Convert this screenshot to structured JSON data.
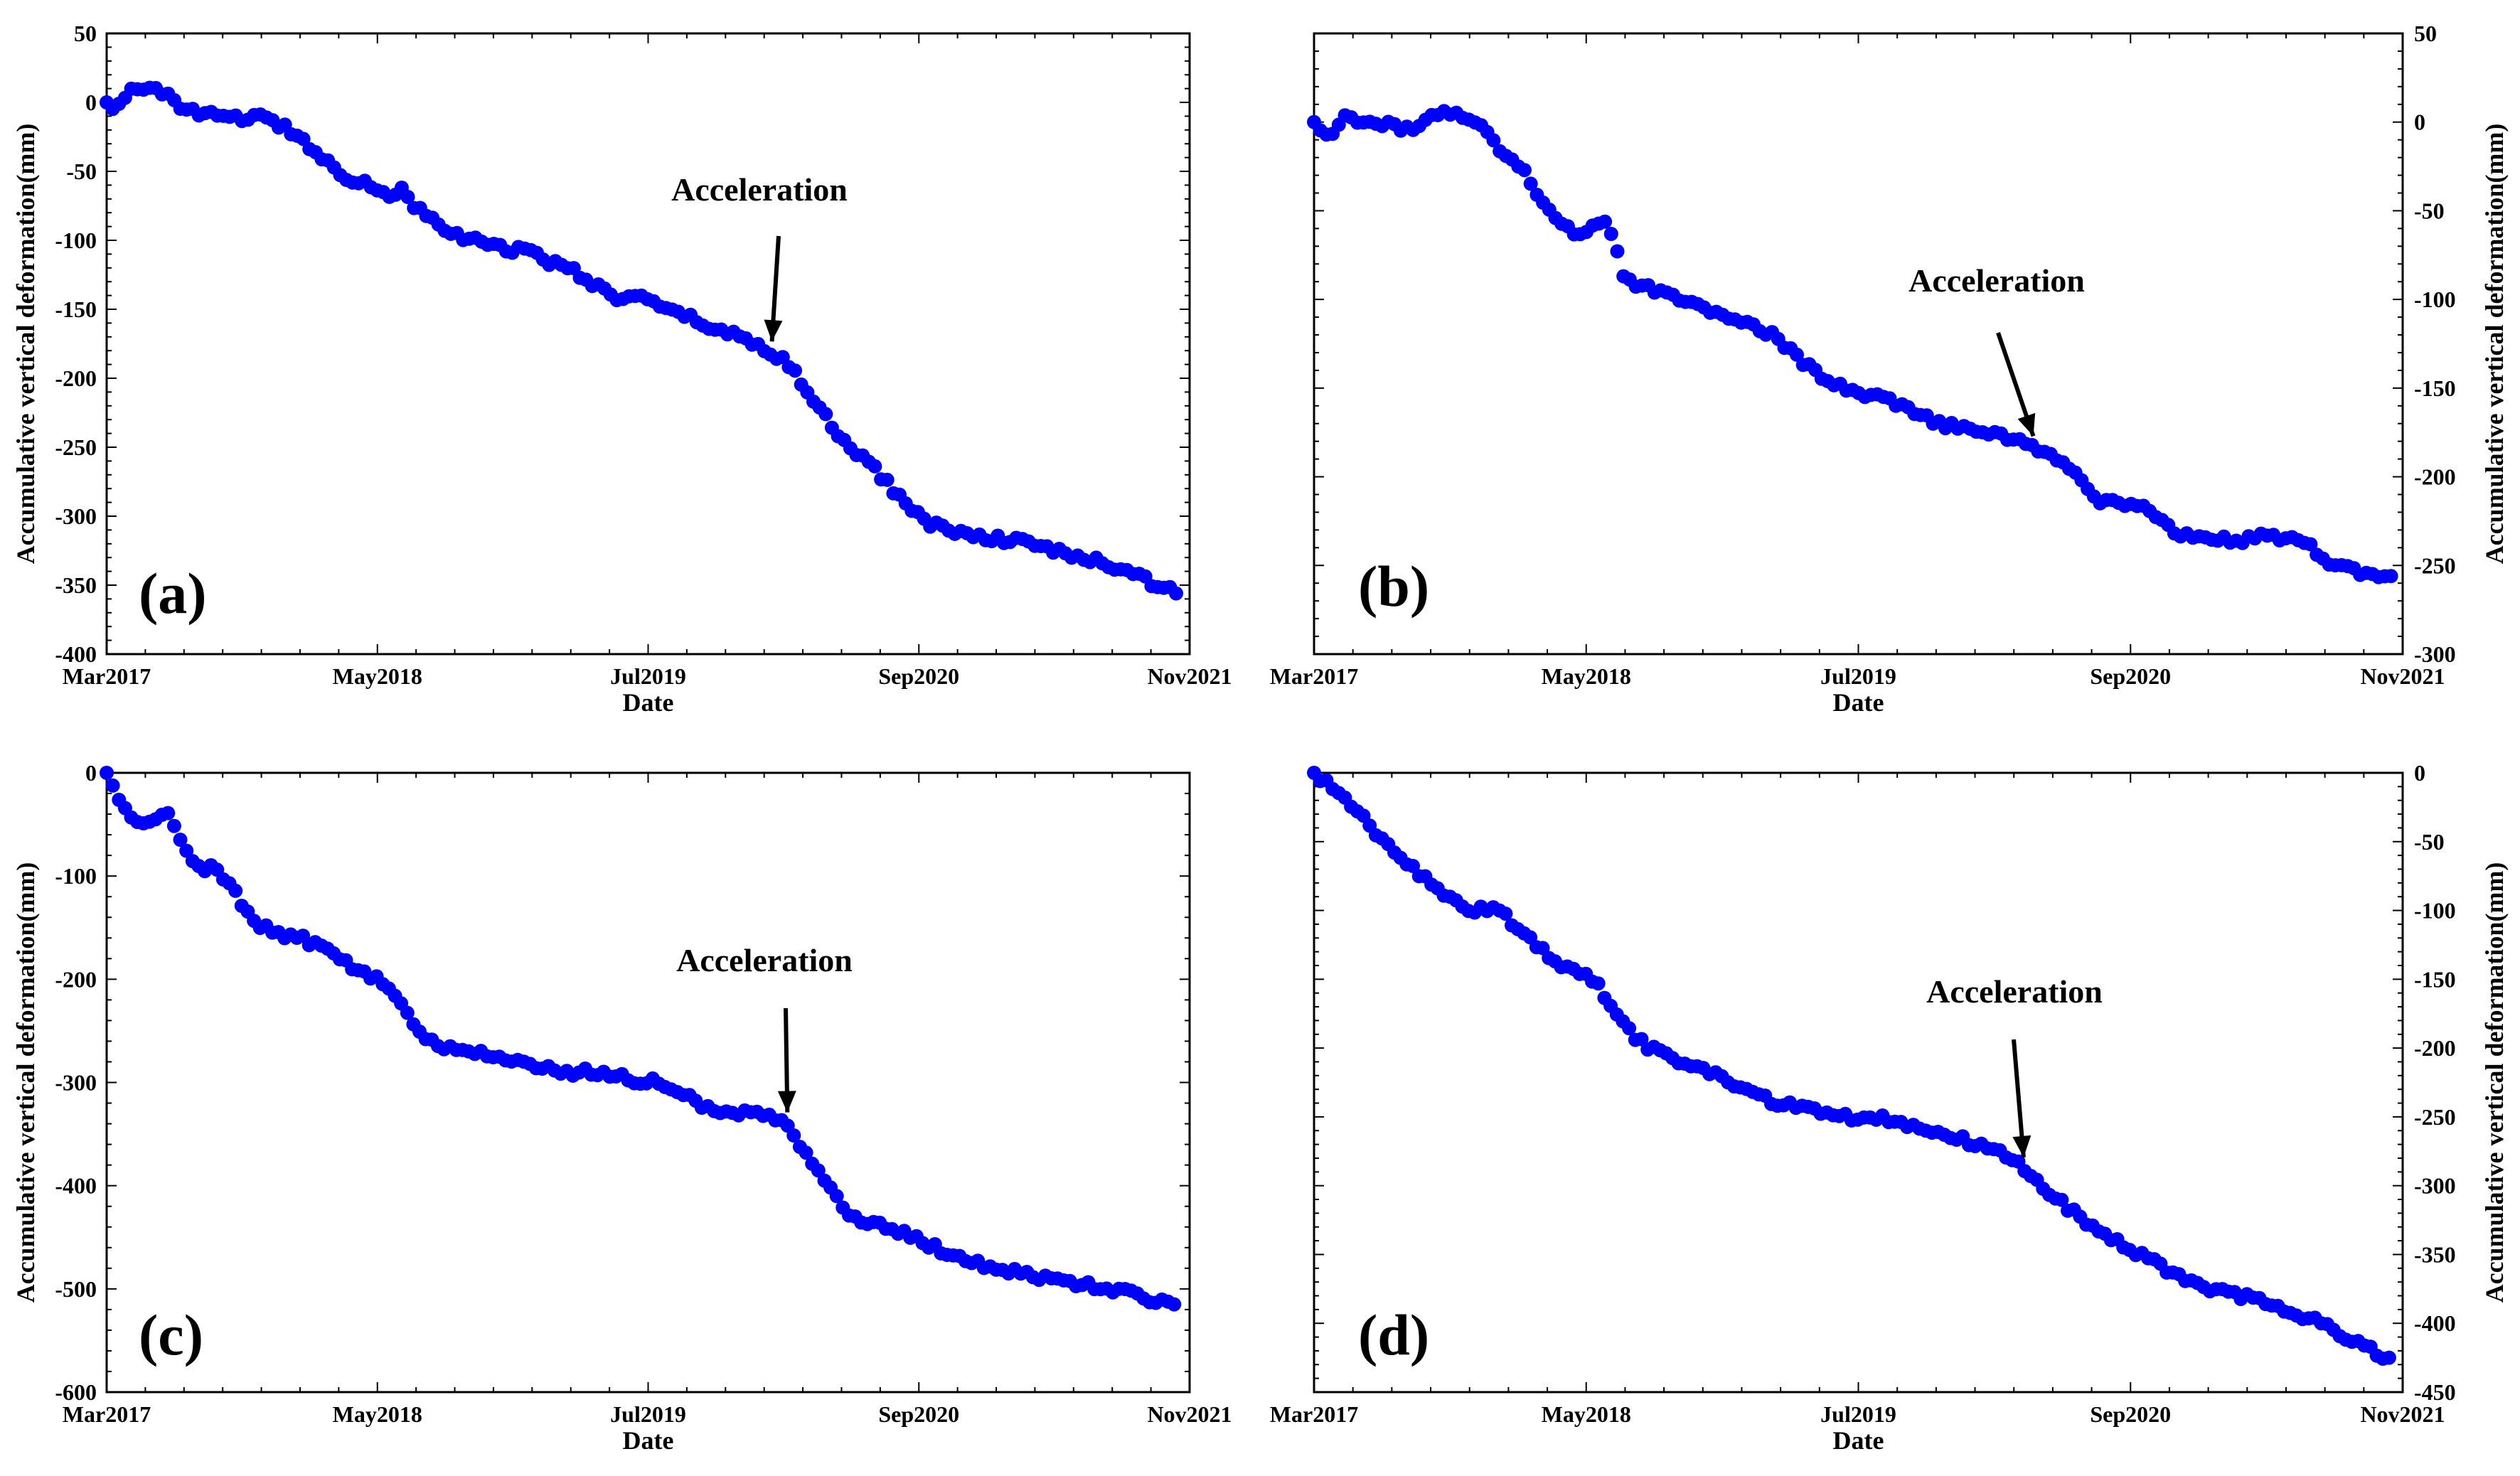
{
  "figure": {
    "colors": {
      "marker": "#0000ff",
      "axis": "#000000",
      "background": "#ffffff"
    }
  },
  "chart_data": [
    {
      "type": "scatter",
      "panel_label": "(a)",
      "xlabel": "Date",
      "ylabel": "Accumulative vertical deformation(mm)",
      "ylabel_side": "left",
      "x_ticks": [
        "Mar2017",
        "May2018",
        "Jul2019",
        "Sep2020",
        "Nov2021"
      ],
      "x_range_months": [
        0,
        56
      ],
      "ylim": [
        -400,
        50
      ],
      "y_ticks": [
        50,
        0,
        -50,
        -100,
        -150,
        -200,
        -250,
        -300,
        -350,
        -400
      ],
      "annotation": {
        "text": "Acceleration",
        "target_month": 34.4
      },
      "keypoints": [
        [
          0,
          0
        ],
        [
          0.4,
          -4
        ],
        [
          1.2,
          8
        ],
        [
          2.5,
          8
        ],
        [
          3.2,
          9
        ],
        [
          3.8,
          -4
        ],
        [
          5.0,
          -10
        ],
        [
          6.0,
          -8
        ],
        [
          6.7,
          -12
        ],
        [
          7.8,
          -10
        ],
        [
          8.5,
          -14
        ],
        [
          9.3,
          -18
        ],
        [
          10.5,
          -32
        ],
        [
          11.6,
          -45
        ],
        [
          12.5,
          -55
        ],
        [
          13.4,
          -58
        ],
        [
          14.6,
          -68
        ],
        [
          15.4,
          -62
        ],
        [
          15.9,
          -75
        ],
        [
          17.2,
          -90
        ],
        [
          18.6,
          -100
        ],
        [
          19.6,
          -100
        ],
        [
          20.8,
          -108
        ],
        [
          21.9,
          -105
        ],
        [
          22.8,
          -115
        ],
        [
          24.2,
          -122
        ],
        [
          25.0,
          -130
        ],
        [
          26.2,
          -142
        ],
        [
          27.5,
          -140
        ],
        [
          28.7,
          -150
        ],
        [
          30.0,
          -155
        ],
        [
          31.5,
          -165
        ],
        [
          32.8,
          -170
        ],
        [
          34.0,
          -178
        ],
        [
          35.0,
          -187
        ],
        [
          35.8,
          -200
        ],
        [
          36.5,
          -215
        ],
        [
          37.5,
          -235
        ],
        [
          38.4,
          -250
        ],
        [
          39.5,
          -262
        ],
        [
          40.9,
          -285
        ],
        [
          42.5,
          -305
        ],
        [
          44.0,
          -312
        ],
        [
          45.5,
          -315
        ],
        [
          47.0,
          -318
        ],
        [
          48.5,
          -322
        ],
        [
          50.0,
          -330
        ],
        [
          51.3,
          -333
        ],
        [
          52.5,
          -338
        ],
        [
          54.0,
          -348
        ],
        [
          55.3,
          -356
        ]
      ]
    },
    {
      "type": "scatter",
      "panel_label": "(b)",
      "xlabel": "Date",
      "ylabel": "Accumulative vertical deformation(mm)",
      "ylabel_side": "right",
      "x_ticks": [
        "Mar2017",
        "May2018",
        "Jul2019",
        "Sep2020",
        "Nov2021"
      ],
      "x_range_months": [
        0,
        56
      ],
      "ylim": [
        -300,
        50
      ],
      "y_ticks": [
        50,
        0,
        -50,
        -100,
        -150,
        -200,
        -250,
        -300
      ],
      "annotation": {
        "text": "Acceleration",
        "target_month": 37.0
      },
      "keypoints": [
        [
          0,
          0
        ],
        [
          0.7,
          -8
        ],
        [
          1.5,
          2
        ],
        [
          3.0,
          -1
        ],
        [
          4.0,
          -2
        ],
        [
          5.0,
          -5
        ],
        [
          6.0,
          4
        ],
        [
          7.0,
          5
        ],
        [
          8.0,
          3
        ],
        [
          8.8,
          -2
        ],
        [
          9.5,
          -15
        ],
        [
          10.3,
          -20
        ],
        [
          11.5,
          -40
        ],
        [
          12.3,
          -52
        ],
        [
          13.0,
          -60
        ],
        [
          13.8,
          -66
        ],
        [
          14.7,
          -55
        ],
        [
          15.3,
          -62
        ],
        [
          15.9,
          -85
        ],
        [
          16.5,
          -92
        ],
        [
          17.6,
          -95
        ],
        [
          18.6,
          -98
        ],
        [
          19.6,
          -103
        ],
        [
          20.4,
          -108
        ],
        [
          21.3,
          -110
        ],
        [
          22.3,
          -112
        ],
        [
          23.6,
          -120
        ],
        [
          24.9,
          -133
        ],
        [
          26.2,
          -145
        ],
        [
          27.5,
          -152
        ],
        [
          29.0,
          -155
        ],
        [
          30.5,
          -162
        ],
        [
          32.0,
          -170
        ],
        [
          33.5,
          -173
        ],
        [
          35.0,
          -176
        ],
        [
          36.0,
          -178
        ],
        [
          36.8,
          -182
        ],
        [
          37.6,
          -188
        ],
        [
          38.5,
          -190
        ],
        [
          39.3,
          -200
        ],
        [
          40.3,
          -213
        ],
        [
          41.5,
          -215
        ],
        [
          42.6,
          -217
        ],
        [
          43.5,
          -224
        ],
        [
          44.6,
          -234
        ],
        [
          46.0,
          -233
        ],
        [
          47.5,
          -237
        ],
        [
          49.0,
          -233
        ],
        [
          50.0,
          -235
        ],
        [
          51.0,
          -238
        ],
        [
          52.5,
          -250
        ],
        [
          53.5,
          -253
        ],
        [
          54.5,
          -256
        ],
        [
          55.4,
          -256
        ]
      ]
    },
    {
      "type": "scatter",
      "panel_label": "(c)",
      "xlabel": "Date",
      "ylabel": "Accumulative vertical deformation(mm)",
      "ylabel_side": "left",
      "x_ticks": [
        "Mar2017",
        "May2018",
        "Jul2019",
        "Sep2020",
        "Nov2021"
      ],
      "x_range_months": [
        0,
        56
      ],
      "ylim": [
        -600,
        0
      ],
      "y_ticks": [
        0,
        -100,
        -200,
        -300,
        -400,
        -500,
        -600
      ],
      "annotation": {
        "text": "Acceleration",
        "target_month": 35.2
      },
      "keypoints": [
        [
          0,
          0
        ],
        [
          0.7,
          -30
        ],
        [
          1.3,
          -45
        ],
        [
          2.3,
          -50
        ],
        [
          3.0,
          -35
        ],
        [
          3.6,
          -55
        ],
        [
          4.1,
          -75
        ],
        [
          4.7,
          -90
        ],
        [
          5.8,
          -95
        ],
        [
          6.6,
          -115
        ],
        [
          7.2,
          -135
        ],
        [
          8.1,
          -150
        ],
        [
          9.2,
          -160
        ],
        [
          10.0,
          -160
        ],
        [
          11.2,
          -170
        ],
        [
          12.0,
          -180
        ],
        [
          13.4,
          -195
        ],
        [
          14.4,
          -205
        ],
        [
          15.1,
          -220
        ],
        [
          15.8,
          -240
        ],
        [
          16.5,
          -258
        ],
        [
          17.5,
          -268
        ],
        [
          18.5,
          -268
        ],
        [
          19.7,
          -272
        ],
        [
          21.0,
          -280
        ],
        [
          22.3,
          -285
        ],
        [
          23.3,
          -290
        ],
        [
          25.0,
          -290
        ],
        [
          26.5,
          -292
        ],
        [
          27.5,
          -300
        ],
        [
          28.5,
          -298
        ],
        [
          29.3,
          -305
        ],
        [
          30.5,
          -320
        ],
        [
          32.0,
          -328
        ],
        [
          33.5,
          -330
        ],
        [
          35.0,
          -335
        ],
        [
          35.6,
          -350
        ],
        [
          36.3,
          -375
        ],
        [
          37.2,
          -398
        ],
        [
          38.3,
          -425
        ],
        [
          39.3,
          -435
        ],
        [
          40.3,
          -440
        ],
        [
          41.3,
          -445
        ],
        [
          42.3,
          -455
        ],
        [
          43.6,
          -468
        ],
        [
          45.0,
          -475
        ],
        [
          46.5,
          -482
        ],
        [
          48.0,
          -488
        ],
        [
          49.5,
          -492
        ],
        [
          51.0,
          -497
        ],
        [
          52.5,
          -502
        ],
        [
          54.0,
          -510
        ],
        [
          55.2,
          -515
        ]
      ]
    },
    {
      "type": "scatter",
      "panel_label": "(d)",
      "xlabel": "Date",
      "ylabel": "Accumulative vertical deformation(mm)",
      "ylabel_side": "right",
      "x_ticks": [
        "Mar2017",
        "May2018",
        "Jul2019",
        "Sep2020",
        "Nov2021"
      ],
      "x_range_months": [
        0,
        56
      ],
      "ylim": [
        -450,
        0
      ],
      "y_ticks": [
        0,
        -50,
        -100,
        -150,
        -200,
        -250,
        -300,
        -350,
        -400,
        -450
      ],
      "annotation": {
        "text": "Acceleration",
        "target_month": 36.5
      },
      "keypoints": [
        [
          0,
          0
        ],
        [
          0.9,
          -10
        ],
        [
          1.7,
          -20
        ],
        [
          2.5,
          -33
        ],
        [
          3.3,
          -45
        ],
        [
          4.2,
          -58
        ],
        [
          5.0,
          -68
        ],
        [
          5.9,
          -78
        ],
        [
          6.8,
          -88
        ],
        [
          7.9,
          -98
        ],
        [
          8.8,
          -100
        ],
        [
          9.7,
          -100
        ],
        [
          10.4,
          -115
        ],
        [
          11.5,
          -125
        ],
        [
          12.5,
          -138
        ],
        [
          13.4,
          -145
        ],
        [
          14.4,
          -150
        ],
        [
          15.1,
          -168
        ],
        [
          16.0,
          -185
        ],
        [
          17.0,
          -198
        ],
        [
          18.4,
          -208
        ],
        [
          19.6,
          -212
        ],
        [
          21.0,
          -222
        ],
        [
          22.4,
          -232
        ],
        [
          23.8,
          -240
        ],
        [
          25.1,
          -242
        ],
        [
          26.5,
          -248
        ],
        [
          27.7,
          -250
        ],
        [
          29.3,
          -250
        ],
        [
          30.8,
          -257
        ],
        [
          32.5,
          -262
        ],
        [
          34.0,
          -270
        ],
        [
          35.0,
          -275
        ],
        [
          36.0,
          -282
        ],
        [
          36.7,
          -290
        ],
        [
          37.7,
          -303
        ],
        [
          38.8,
          -316
        ],
        [
          39.7,
          -328
        ],
        [
          40.9,
          -338
        ],
        [
          42.1,
          -348
        ],
        [
          43.5,
          -358
        ],
        [
          45.0,
          -370
        ],
        [
          46.2,
          -376
        ],
        [
          47.6,
          -380
        ],
        [
          49.1,
          -384
        ],
        [
          50.2,
          -392
        ],
        [
          51.4,
          -398
        ],
        [
          52.5,
          -405
        ],
        [
          53.5,
          -413
        ],
        [
          54.5,
          -420
        ],
        [
          55.3,
          -425
        ]
      ]
    }
  ]
}
